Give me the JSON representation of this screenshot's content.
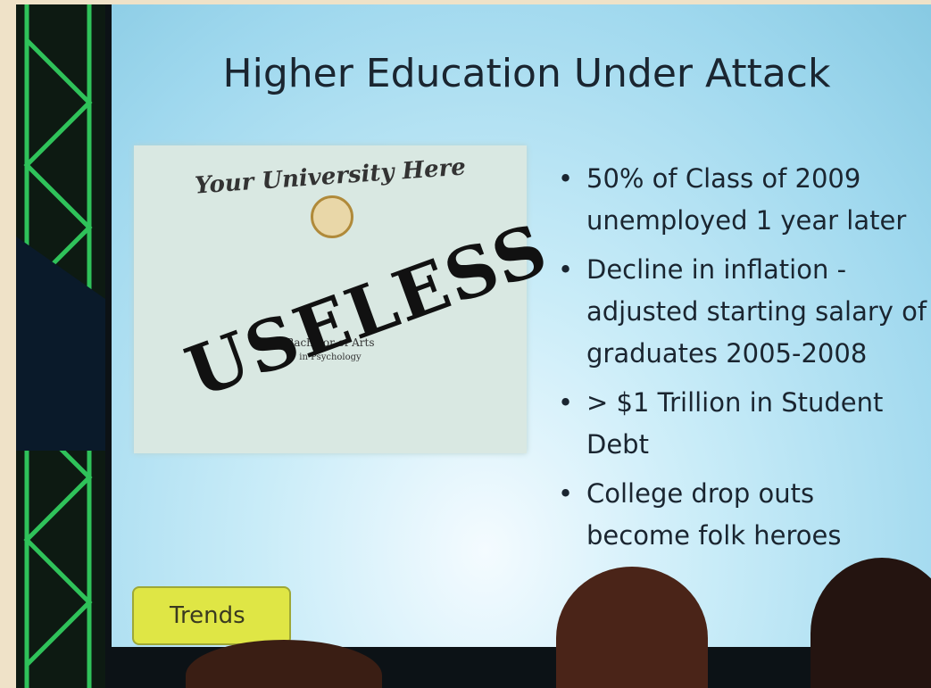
{
  "slide": {
    "title": "Higher Education Under Attack",
    "diploma": {
      "university": "Your University Here",
      "stamp": "USELESS",
      "degree": "Bachelor of Arts",
      "field": "in Psychology"
    },
    "bullets": [
      [
        "50% of Class of 2009",
        "unemployed 1 year later"
      ],
      [
        "Decline in inflation -",
        "adjusted starting salary of",
        "graduates 2005-2008"
      ],
      [
        "> $1 Trillion in Student",
        "Debt"
      ],
      [
        "College drop outs",
        "become folk heroes"
      ]
    ],
    "button": "Trends"
  }
}
